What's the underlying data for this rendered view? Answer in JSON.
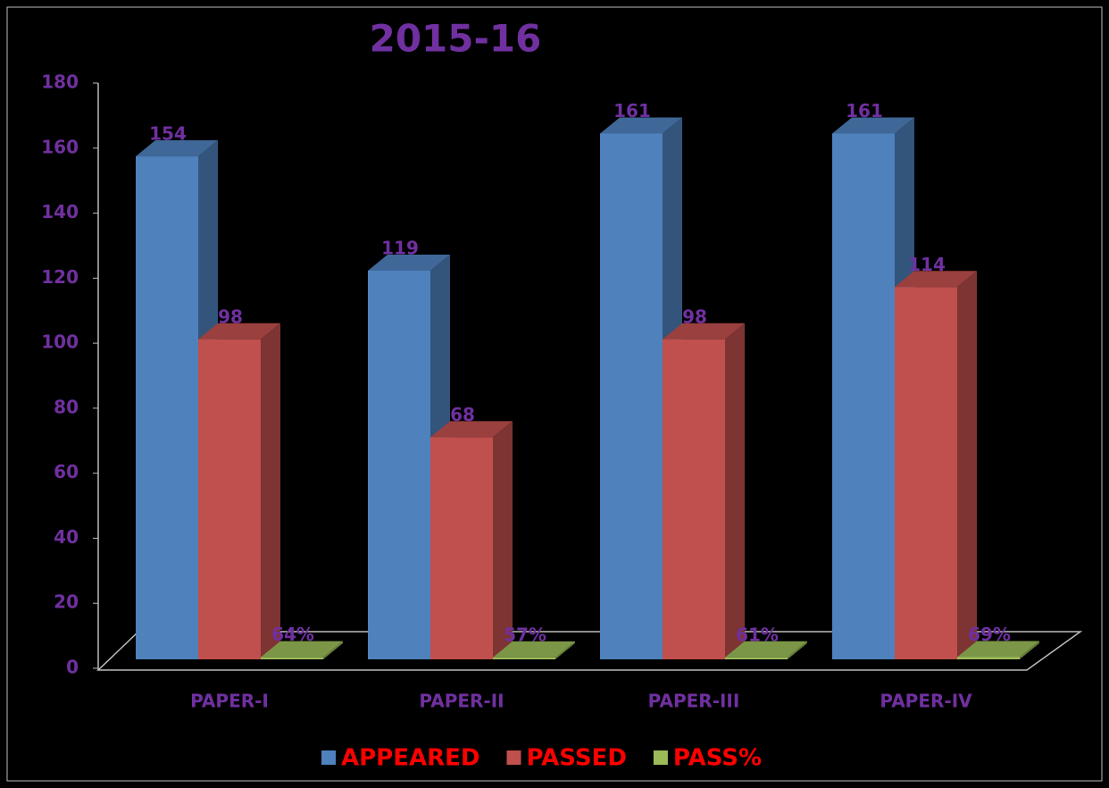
{
  "chart_data": {
    "type": "bar3d",
    "title": "2015-16",
    "categories": [
      "PAPER-I",
      "PAPER-II",
      "PAPER-III",
      "PAPER-IV"
    ],
    "series": [
      {
        "name": "APPEARED",
        "color": "#4f81bd",
        "values": [
          154,
          119,
          161,
          161
        ]
      },
      {
        "name": "PASSED",
        "color": "#c0504d",
        "values": [
          98,
          68,
          98,
          114
        ]
      },
      {
        "name": "PASS%",
        "color": "#9bbb59",
        "values": [
          0.64,
          0.57,
          0.61,
          0.69
        ],
        "value_labels": [
          "64%",
          "57%",
          "61%",
          "69%"
        ]
      }
    ],
    "ylim": [
      0,
      180
    ],
    "yticks": [
      0,
      20,
      40,
      60,
      80,
      100,
      120,
      140,
      160,
      180
    ]
  }
}
